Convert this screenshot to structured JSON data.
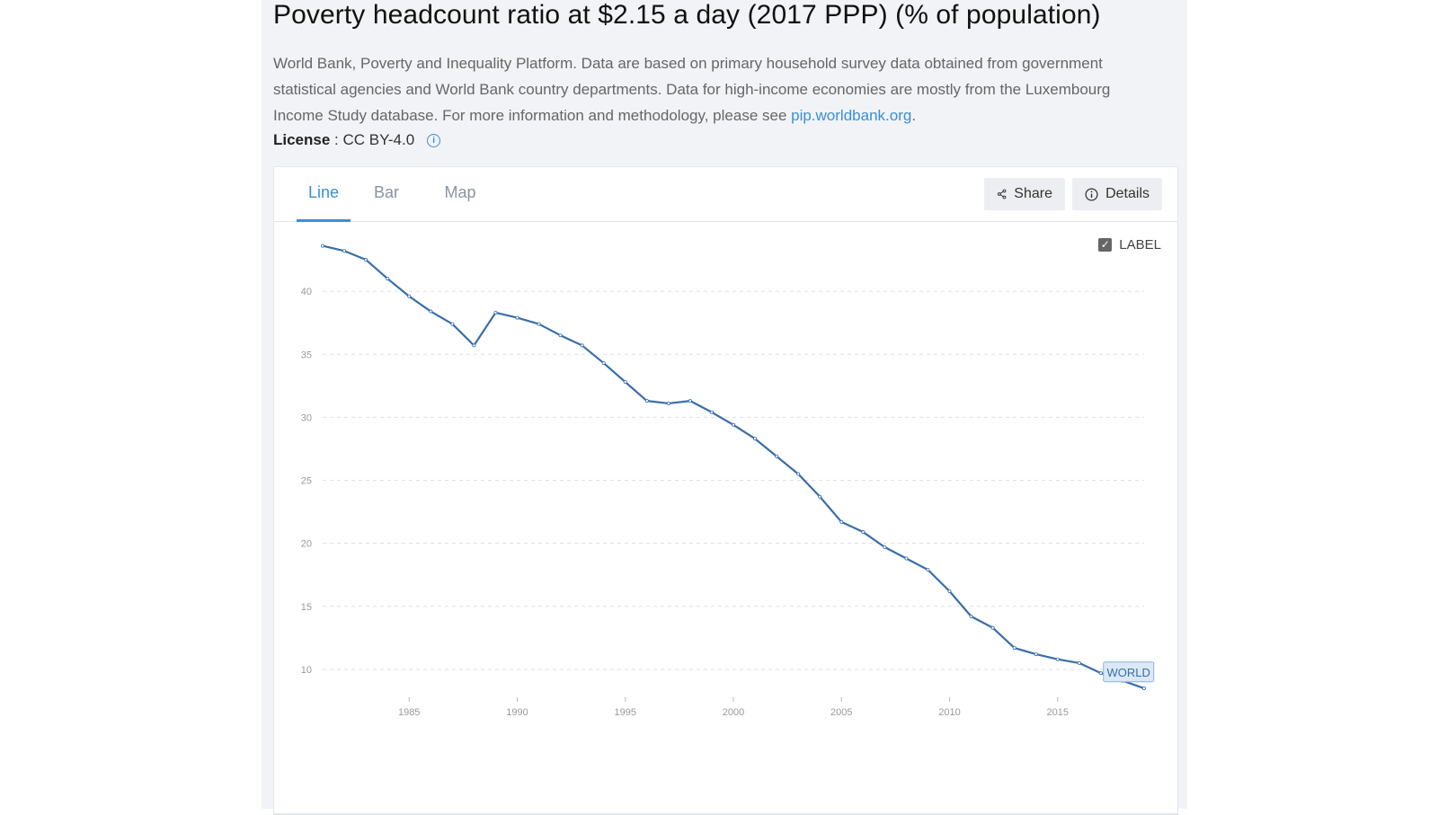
{
  "header": {
    "title": "Poverty headcount ratio at $2.15 a day (2017 PPP) (% of population)",
    "description": "World Bank, Poverty and Inequality Platform. Data are based on primary household survey data obtained from government statistical agencies and World Bank country departments. Data for high-income economies are mostly from the Luxembourg Income Study database. For more information and methodology, please see ",
    "link_text": "pip.worldbank.org",
    "description_end": ".",
    "license_label": "License",
    "license_sep": " : ",
    "license_value": "CC BY-4.0"
  },
  "tabs": [
    {
      "label": "Line",
      "active": true
    },
    {
      "label": "Bar",
      "active": false
    },
    {
      "label": "Map",
      "active": false
    }
  ],
  "toolbar": {
    "share_label": "Share",
    "details_label": "Details"
  },
  "legend": {
    "label": "LABEL",
    "checked": true
  },
  "colors": {
    "accent": "#3a8fd8",
    "series": "#3a6ea8"
  },
  "chart_data": {
    "type": "line",
    "x": [
      1981,
      1982,
      1983,
      1984,
      1985,
      1986,
      1987,
      1988,
      1989,
      1990,
      1991,
      1992,
      1993,
      1994,
      1995,
      1996,
      1997,
      1998,
      1999,
      2000,
      2001,
      2002,
      2003,
      2004,
      2005,
      2006,
      2007,
      2008,
      2009,
      2010,
      2011,
      2012,
      2013,
      2014,
      2015,
      2016,
      2017,
      2018,
      2019
    ],
    "series": [
      {
        "name": "WORLD",
        "values": [
          43.6,
          43.2,
          42.5,
          41.0,
          39.6,
          38.4,
          37.4,
          35.7,
          38.3,
          37.9,
          37.4,
          36.5,
          35.7,
          34.3,
          32.8,
          31.3,
          31.1,
          31.3,
          30.4,
          29.4,
          28.3,
          26.9,
          25.5,
          23.7,
          21.7,
          20.9,
          19.7,
          18.8,
          17.9,
          16.2,
          14.2,
          13.3,
          11.7,
          11.2,
          10.8,
          10.5,
          9.7,
          9.1,
          8.5
        ]
      }
    ],
    "xlim": [
      1981,
      2019
    ],
    "ylim": [
      8,
      44
    ],
    "x_ticks": [
      1985,
      1990,
      1995,
      2000,
      2005,
      2010,
      2015
    ],
    "y_ticks": [
      10,
      15,
      20,
      25,
      30,
      35,
      40
    ],
    "grid": true,
    "end_label": "WORLD"
  }
}
